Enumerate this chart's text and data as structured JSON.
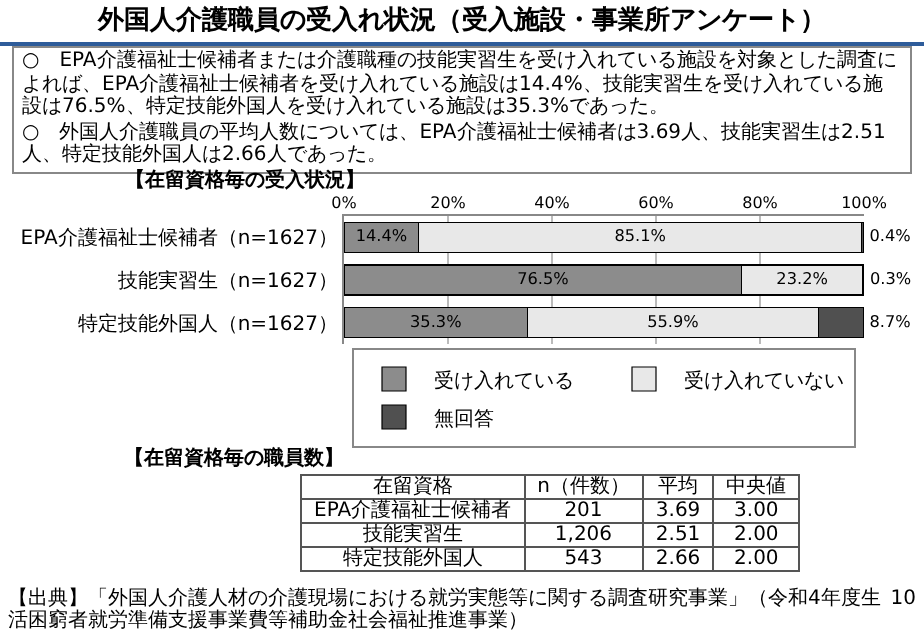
{
  "chart_data": [
    {
      "type": "other",
      "title": "外国人介護職員の受入れ状況（受入施設・事業所アンケート）",
      "annotations": [
        "○　EPA介護福祉士候補者または介護職種の技能実習生を受け入れている施設を対象とした調査によれば、EPA介護福祉士候補者を受け入れている施設は14.4%、技能実習生を受け入れている施設は76.5%、特定技能外国人を受け入れている施設は35.3%であった。",
        "○　外国人介護職員の平均人数については、EPA介護福祉士候補者は3.69人、技能実習生は2.51人、特定技能外国人は2.66人であった。"
      ]
    },
    {
      "type": "bar",
      "orientation": "horizontal",
      "stacked": true,
      "title": "【在留資格毎の受入状況】",
      "categories": [
        "EPA介護福祉士候補者（n=1627）",
        "技能実習生（n=1627）",
        "特定技能外国人（n=1627）"
      ],
      "series": [
        {
          "name": "受け入れている",
          "color": "#8c8c8c",
          "values": [
            14.4,
            76.5,
            35.3
          ],
          "value_labels": [
            "14.4%",
            "76.5%",
            "35.3%"
          ]
        },
        {
          "name": "受け入れていない",
          "color": "#e8e8e8",
          "values": [
            85.1,
            23.2,
            55.9
          ],
          "value_labels": [
            "85.1%",
            "23.2%",
            "55.9%"
          ]
        },
        {
          "name": "無回答",
          "color": "#505050",
          "values": [
            0.4,
            0.3,
            8.7
          ],
          "value_labels": [
            "0.4%",
            "0.3%",
            "8.7%"
          ]
        }
      ],
      "xlim": [
        0,
        100
      ],
      "xticks": [
        {
          "value": 0,
          "label": "0%"
        },
        {
          "value": 20,
          "label": "20%"
        },
        {
          "value": 40,
          "label": "40%"
        },
        {
          "value": 60,
          "label": "60%"
        },
        {
          "value": 80,
          "label": "80%"
        },
        {
          "value": 100,
          "label": "100%"
        }
      ],
      "grid": "x",
      "legend": "bottom"
    },
    {
      "type": "other",
      "title": "【在留資格毎の職員数】",
      "ylabel": "在留資格",
      "categories": [
        "EPA介護福祉士候補者",
        "技能実習生",
        "特定技能外国人"
      ],
      "series": [
        {
          "name": "n（件数）",
          "values": [
            201,
            1206,
            543
          ],
          "value_labels": [
            "201",
            "1,206",
            "543"
          ]
        },
        {
          "name": "平均",
          "values": [
            3.69,
            2.51,
            2.66
          ],
          "value_labels": [
            "3.69",
            "2.51",
            "2.66"
          ]
        },
        {
          "name": "中央値",
          "values": [
            3.0,
            2.0,
            2.0
          ],
          "value_labels": [
            "3.00",
            "2.00",
            "2.00"
          ]
        }
      ],
      "annotations": [
        "【出典】「外国人介護人材の介護現場における就労実態等に関する調査研究事業」（令和4年度生活困窮者就労準備支援事業費等補助金社会福祉推進事業）",
        "10"
      ]
    }
  ]
}
